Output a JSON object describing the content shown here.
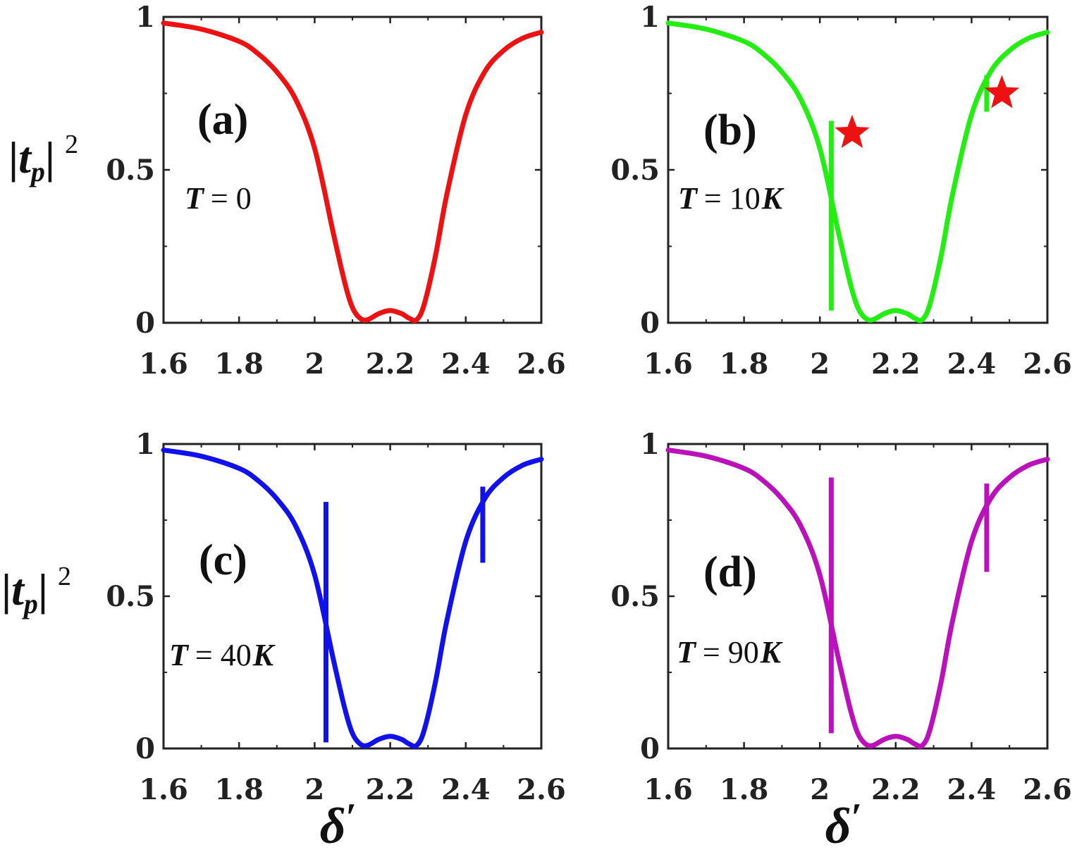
{
  "figure": {
    "xlabel_text": "δ",
    "xlabel_prime": "′",
    "ylabel_main": "|t",
    "ylabel_sub": "p",
    "ylabel_close": "|",
    "ylabel_sup": "2"
  },
  "chart_data": [
    {
      "type": "line",
      "panel": "(a)",
      "temperature": "T = 0",
      "temp_T": "T",
      "temp_eq": "= 0",
      "temp_unit": "",
      "color": "#ee1111",
      "xlim": [
        1.6,
        2.6
      ],
      "ylim": [
        0,
        1
      ],
      "xticks": [
        1.6,
        1.8,
        2.0,
        2.2,
        2.4,
        2.6
      ],
      "xtick_labels": [
        "1.6",
        "1.8",
        "2",
        "2.2",
        "2.4",
        "2.6"
      ],
      "yticks": [
        0,
        0.5,
        1
      ],
      "ytick_labels": [
        "0",
        "0.5",
        "1"
      ],
      "xlabel": "",
      "ylabel": "|tp|^2",
      "series": [
        {
          "name": "|tp|^2",
          "x": [
            1.6,
            1.7,
            1.8,
            1.85,
            1.9,
            1.95,
            2.0,
            2.05,
            2.08,
            2.1,
            2.12,
            2.14,
            2.17,
            2.2,
            2.23,
            2.25,
            2.27,
            2.29,
            2.32,
            2.35,
            2.4,
            2.45,
            2.5,
            2.55,
            2.6
          ],
          "y": [
            0.98,
            0.96,
            0.92,
            0.88,
            0.82,
            0.73,
            0.57,
            0.29,
            0.13,
            0.05,
            0.015,
            0.01,
            0.03,
            0.04,
            0.03,
            0.015,
            0.01,
            0.06,
            0.22,
            0.42,
            0.68,
            0.82,
            0.89,
            0.93,
            0.95
          ]
        }
      ],
      "markers": [],
      "spikes": []
    },
    {
      "type": "line",
      "panel": "(b)",
      "temperature": "T = 10K",
      "temp_T": "T",
      "temp_eq": "= 10",
      "temp_unit": "K",
      "color": "#22ee11",
      "xlim": [
        1.6,
        2.6
      ],
      "ylim": [
        0,
        1
      ],
      "xticks": [
        1.6,
        1.8,
        2.0,
        2.2,
        2.4,
        2.6
      ],
      "xtick_labels": [
        "1.6",
        "1.8",
        "2",
        "2.2",
        "2.4",
        "2.6"
      ],
      "yticks": [
        0,
        0.5,
        1
      ],
      "ytick_labels": [
        "0",
        "0.5",
        "1"
      ],
      "xlabel": "",
      "ylabel": "",
      "series": [
        {
          "name": "|tp|^2",
          "x": [
            1.6,
            1.7,
            1.8,
            1.85,
            1.9,
            1.95,
            2.0,
            2.05,
            2.08,
            2.1,
            2.12,
            2.14,
            2.17,
            2.2,
            2.23,
            2.25,
            2.27,
            2.29,
            2.32,
            2.35,
            2.4,
            2.45,
            2.5,
            2.55,
            2.6
          ],
          "y": [
            0.98,
            0.96,
            0.92,
            0.88,
            0.82,
            0.73,
            0.57,
            0.29,
            0.13,
            0.05,
            0.015,
            0.01,
            0.03,
            0.04,
            0.03,
            0.015,
            0.01,
            0.06,
            0.22,
            0.42,
            0.68,
            0.82,
            0.89,
            0.93,
            0.95
          ]
        }
      ],
      "markers": [
        {
          "x": 2.085,
          "y": 0.62,
          "symbol": "star",
          "color": "#ee1111"
        },
        {
          "x": 2.48,
          "y": 0.75,
          "symbol": "star",
          "color": "#ee1111"
        }
      ],
      "spikes": [
        {
          "x": 2.03,
          "y_top": 0.66,
          "y_bottom": 0.04
        },
        {
          "x": 2.44,
          "y_top": 0.81,
          "y_bottom": 0.69
        }
      ]
    },
    {
      "type": "line",
      "panel": "(c)",
      "temperature": "T = 40K",
      "temp_T": "T",
      "temp_eq": "= 40",
      "temp_unit": "K",
      "color": "#1111ee",
      "xlim": [
        1.6,
        2.6
      ],
      "ylim": [
        0,
        1
      ],
      "xticks": [
        1.6,
        1.8,
        2.0,
        2.2,
        2.4,
        2.6
      ],
      "xtick_labels": [
        "1.6",
        "1.8",
        "2",
        "2.2",
        "2.4",
        "2.6"
      ],
      "yticks": [
        0,
        0.5,
        1
      ],
      "ytick_labels": [
        "0",
        "0.5",
        "1"
      ],
      "xlabel": "δ'",
      "ylabel": "|tp|^2",
      "series": [
        {
          "name": "|tp|^2",
          "x": [
            1.6,
            1.7,
            1.8,
            1.85,
            1.9,
            1.95,
            2.0,
            2.05,
            2.08,
            2.1,
            2.12,
            2.14,
            2.17,
            2.2,
            2.23,
            2.25,
            2.27,
            2.29,
            2.32,
            2.35,
            2.4,
            2.45,
            2.5,
            2.55,
            2.6
          ],
          "y": [
            0.98,
            0.96,
            0.92,
            0.88,
            0.82,
            0.73,
            0.57,
            0.29,
            0.13,
            0.05,
            0.015,
            0.01,
            0.03,
            0.04,
            0.03,
            0.015,
            0.01,
            0.06,
            0.22,
            0.42,
            0.68,
            0.82,
            0.89,
            0.93,
            0.95
          ]
        }
      ],
      "markers": [],
      "spikes": [
        {
          "x": 2.03,
          "y_top": 0.81,
          "y_bottom": 0.02
        },
        {
          "x": 2.445,
          "y_top": 0.86,
          "y_bottom": 0.61
        }
      ]
    },
    {
      "type": "line",
      "panel": "(d)",
      "temperature": "T = 90K",
      "temp_T": "T",
      "temp_eq": "= 90",
      "temp_unit": "K",
      "color": "#bb11bb",
      "xlim": [
        1.6,
        2.6
      ],
      "ylim": [
        0,
        1
      ],
      "xticks": [
        1.6,
        1.8,
        2.0,
        2.2,
        2.4,
        2.6
      ],
      "xtick_labels": [
        "1.6",
        "1.8",
        "2",
        "2.2",
        "2.4",
        "2.6"
      ],
      "yticks": [
        0,
        0.5,
        1
      ],
      "ytick_labels": [
        "0",
        "0.5",
        "1"
      ],
      "xlabel": "δ'",
      "ylabel": "",
      "series": [
        {
          "name": "|tp|^2",
          "x": [
            1.6,
            1.7,
            1.8,
            1.85,
            1.9,
            1.95,
            2.0,
            2.05,
            2.08,
            2.1,
            2.12,
            2.14,
            2.17,
            2.2,
            2.23,
            2.25,
            2.27,
            2.29,
            2.32,
            2.35,
            2.4,
            2.45,
            2.5,
            2.55,
            2.6
          ],
          "y": [
            0.98,
            0.96,
            0.92,
            0.88,
            0.82,
            0.73,
            0.57,
            0.29,
            0.13,
            0.05,
            0.015,
            0.01,
            0.03,
            0.04,
            0.03,
            0.015,
            0.01,
            0.06,
            0.22,
            0.42,
            0.68,
            0.82,
            0.89,
            0.93,
            0.95
          ]
        }
      ],
      "markers": [],
      "spikes": [
        {
          "x": 2.03,
          "y_top": 0.89,
          "y_bottom": 0.05
        },
        {
          "x": 2.44,
          "y_top": 0.87,
          "y_bottom": 0.58
        }
      ]
    }
  ]
}
